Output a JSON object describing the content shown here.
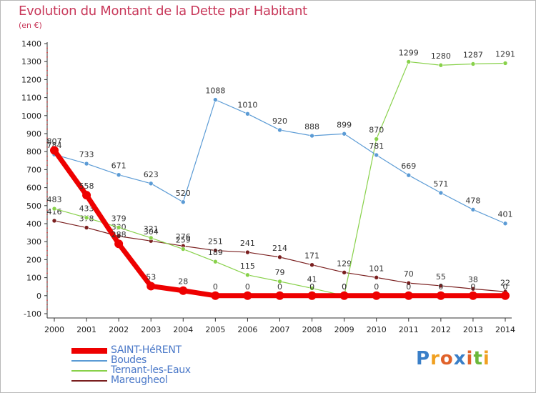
{
  "header": {
    "title": "Evolution du Montant de la Dette par Habitant",
    "subtitle": "(en €)"
  },
  "colors": {
    "title": "#c8385a",
    "axis": "#333333",
    "grid_dots": "#cc3333",
    "legend_text": "#4a78c8"
  },
  "chart_data": {
    "type": "line",
    "title": "Evolution du Montant de la Dette par Habitant",
    "subtitle": "(en €)",
    "xlabel": "",
    "ylabel": "",
    "x": [
      2000,
      2001,
      2002,
      2003,
      2004,
      2005,
      2006,
      2007,
      2008,
      2009,
      2010,
      2011,
      2012,
      2013,
      2014
    ],
    "ylim": [
      -100,
      1400
    ],
    "yticks": [
      -100,
      0,
      100,
      200,
      300,
      400,
      500,
      600,
      700,
      800,
      900,
      1000,
      1100,
      1200,
      1300,
      1400
    ],
    "legend_position": "bottom-left",
    "series": [
      {
        "name": "Mareugheol",
        "color": "#7a1f1f",
        "width": 1.2,
        "marker_radius": 3,
        "values": [
          416,
          378,
          330,
          304,
          276,
          251,
          241,
          214,
          171,
          129,
          101,
          70,
          55,
          38,
          22
        ],
        "labels": [
          "416",
          "378",
          "330",
          "304",
          "276",
          "251",
          "241",
          "214",
          "171",
          "129",
          "101",
          "70",
          "55",
          "38",
          "22"
        ]
      },
      {
        "name": "Ternant-les-Eaux",
        "color": "#88d14a",
        "width": 1.2,
        "marker_radius": 3,
        "values": [
          483,
          433,
          379,
          321,
          259,
          189,
          115,
          79,
          41,
          0,
          870,
          1299,
          1280,
          1287,
          1291
        ],
        "labels": [
          "483",
          "433",
          "379",
          "321",
          "259",
          "189",
          "115",
          "79",
          "41",
          "0",
          "870",
          "1299",
          "1280",
          "1287",
          "1291"
        ]
      },
      {
        "name": "Boudes",
        "color": "#5b9bd5",
        "width": 1.2,
        "marker_radius": 3,
        "values": [
          784,
          733,
          671,
          623,
          520,
          1088,
          1010,
          920,
          888,
          899,
          781,
          669,
          571,
          478,
          401
        ],
        "labels": [
          "784",
          "733",
          "671",
          "623",
          "520",
          "1088",
          "1010",
          "920",
          "888",
          "899",
          "781",
          "669",
          "571",
          "478",
          "401"
        ]
      },
      {
        "name": "SAINT-HéRENT",
        "color": "#ee0000",
        "width": 7,
        "marker_radius": 6,
        "values": [
          807,
          558,
          288,
          53,
          28,
          0,
          0,
          0,
          0,
          0,
          0,
          0,
          0,
          0,
          0
        ],
        "labels": [
          "807",
          "558",
          "288",
          "53",
          "28",
          "0",
          "0",
          "0",
          "0",
          "0",
          "0",
          "0",
          "0",
          "0",
          "0"
        ]
      }
    ]
  },
  "legend": {
    "items": [
      {
        "label": "SAINT-HéRENT",
        "color": "#ee0000",
        "thickness": 8
      },
      {
        "label": "Boudes",
        "color": "#5b9bd5",
        "thickness": 2
      },
      {
        "label": "Ternant-les-Eaux",
        "color": "#88d14a",
        "thickness": 2
      },
      {
        "label": "Mareugheol",
        "color": "#7a1f1f",
        "thickness": 2
      }
    ]
  },
  "brand": {
    "letters": [
      "P",
      "r",
      "o",
      "x",
      "i",
      "t",
      "i"
    ],
    "colors": [
      "#3a7fc8",
      "#f0a020",
      "#e0622a",
      "#3a7fc8",
      "#e0622a",
      "#6bb83a",
      "#f0a020"
    ]
  }
}
